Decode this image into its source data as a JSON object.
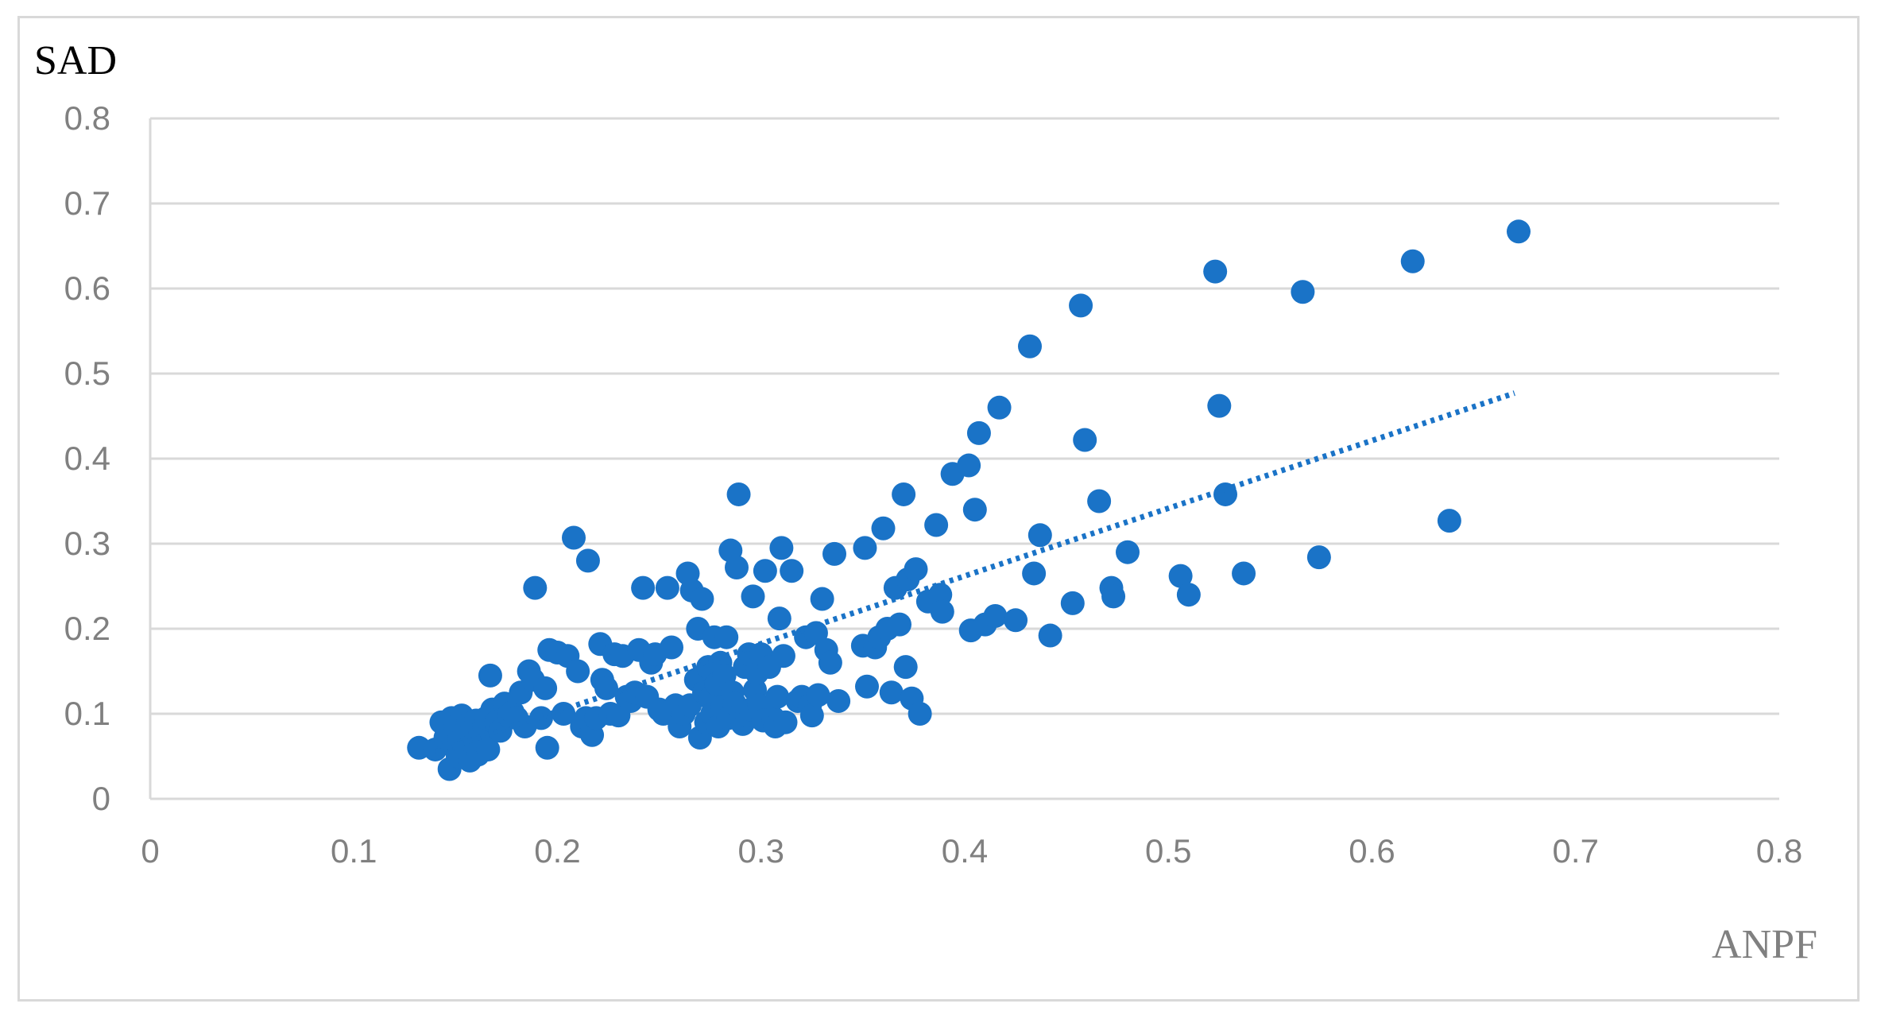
{
  "chart_data": {
    "type": "scatter",
    "title": "",
    "xlabel": "ANPF",
    "ylabel": "SAD",
    "xlim": [
      0,
      0.8
    ],
    "ylim": [
      0,
      0.8
    ],
    "x_ticks": [
      "0",
      "0.1",
      "0.2",
      "0.3",
      "0.4",
      "0.5",
      "0.6",
      "0.7",
      "0.8"
    ],
    "y_ticks": [
      "0",
      "0.1",
      "0.2",
      "0.3",
      "0.4",
      "0.5",
      "0.6",
      "0.7",
      "0.8"
    ],
    "grid": "horizontal",
    "legend": "none",
    "colors": {
      "marker": "#1a73c7",
      "trendline": "#1a73c7",
      "grid": "#d9d9d9",
      "tick": "#808080"
    },
    "trendline": {
      "style": "dotted",
      "from": [
        0.14,
        0.055
      ],
      "to": [
        0.67,
        0.477
      ]
    },
    "series": [
      {
        "points": [
          [
            0.132,
            0.06
          ],
          [
            0.14,
            0.058
          ],
          [
            0.143,
            0.09
          ],
          [
            0.145,
            0.072
          ],
          [
            0.146,
            0.08
          ],
          [
            0.147,
            0.035
          ],
          [
            0.148,
            0.095
          ],
          [
            0.149,
            0.062
          ],
          [
            0.15,
            0.085
          ],
          [
            0.151,
            0.05
          ],
          [
            0.152,
            0.07
          ],
          [
            0.153,
            0.098
          ],
          [
            0.154,
            0.075
          ],
          [
            0.155,
            0.058
          ],
          [
            0.156,
            0.088
          ],
          [
            0.157,
            0.045
          ],
          [
            0.158,
            0.082
          ],
          [
            0.159,
            0.065
          ],
          [
            0.16,
            0.092
          ],
          [
            0.161,
            0.052
          ],
          [
            0.162,
            0.078
          ],
          [
            0.163,
            0.068
          ],
          [
            0.164,
            0.085
          ],
          [
            0.165,
            0.095
          ],
          [
            0.166,
            0.058
          ],
          [
            0.167,
            0.145
          ],
          [
            0.168,
            0.105
          ],
          [
            0.17,
            0.09
          ],
          [
            0.172,
            0.08
          ],
          [
            0.174,
            0.112
          ],
          [
            0.176,
            0.098
          ],
          [
            0.178,
            0.102
          ],
          [
            0.18,
            0.095
          ],
          [
            0.182,
            0.125
          ],
          [
            0.184,
            0.085
          ],
          [
            0.186,
            0.15
          ],
          [
            0.188,
            0.14
          ],
          [
            0.189,
            0.248
          ],
          [
            0.192,
            0.095
          ],
          [
            0.194,
            0.13
          ],
          [
            0.195,
            0.06
          ],
          [
            0.196,
            0.175
          ],
          [
            0.2,
            0.172
          ],
          [
            0.203,
            0.1
          ],
          [
            0.205,
            0.168
          ],
          [
            0.208,
            0.307
          ],
          [
            0.21,
            0.15
          ],
          [
            0.212,
            0.085
          ],
          [
            0.214,
            0.095
          ],
          [
            0.215,
            0.28
          ],
          [
            0.217,
            0.075
          ],
          [
            0.219,
            0.095
          ],
          [
            0.221,
            0.182
          ],
          [
            0.222,
            0.14
          ],
          [
            0.224,
            0.13
          ],
          [
            0.226,
            0.1
          ],
          [
            0.228,
            0.17
          ],
          [
            0.23,
            0.098
          ],
          [
            0.232,
            0.168
          ],
          [
            0.234,
            0.12
          ],
          [
            0.236,
            0.115
          ],
          [
            0.238,
            0.125
          ],
          [
            0.24,
            0.175
          ],
          [
            0.242,
            0.248
          ],
          [
            0.244,
            0.12
          ],
          [
            0.246,
            0.16
          ],
          [
            0.248,
            0.17
          ],
          [
            0.25,
            0.105
          ],
          [
            0.252,
            0.1
          ],
          [
            0.254,
            0.248
          ],
          [
            0.256,
            0.178
          ],
          [
            0.258,
            0.11
          ],
          [
            0.26,
            0.085
          ],
          [
            0.262,
            0.1
          ],
          [
            0.264,
            0.265
          ],
          [
            0.265,
            0.11
          ],
          [
            0.266,
            0.245
          ],
          [
            0.268,
            0.14
          ],
          [
            0.269,
            0.2
          ],
          [
            0.27,
            0.072
          ],
          [
            0.271,
            0.235
          ],
          [
            0.272,
            0.125
          ],
          [
            0.273,
            0.09
          ],
          [
            0.274,
            0.155
          ],
          [
            0.275,
            0.118
          ],
          [
            0.276,
            0.1
          ],
          [
            0.277,
            0.19
          ],
          [
            0.278,
            0.135
          ],
          [
            0.279,
            0.085
          ],
          [
            0.28,
            0.16
          ],
          [
            0.281,
            0.108
          ],
          [
            0.282,
            0.145
          ],
          [
            0.283,
            0.19
          ],
          [
            0.284,
            0.095
          ],
          [
            0.285,
            0.292
          ],
          [
            0.286,
            0.125
          ],
          [
            0.287,
            0.112
          ],
          [
            0.288,
            0.272
          ],
          [
            0.289,
            0.358
          ],
          [
            0.29,
            0.1
          ],
          [
            0.291,
            0.088
          ],
          [
            0.292,
            0.155
          ],
          [
            0.293,
            0.098
          ],
          [
            0.294,
            0.17
          ],
          [
            0.295,
            0.105
          ],
          [
            0.296,
            0.238
          ],
          [
            0.297,
            0.128
          ],
          [
            0.298,
            0.148
          ],
          [
            0.299,
            0.11
          ],
          [
            0.3,
            0.17
          ],
          [
            0.301,
            0.092
          ],
          [
            0.302,
            0.268
          ],
          [
            0.304,
            0.155
          ],
          [
            0.306,
            0.095
          ],
          [
            0.307,
            0.085
          ],
          [
            0.308,
            0.12
          ],
          [
            0.309,
            0.212
          ],
          [
            0.31,
            0.295
          ],
          [
            0.311,
            0.168
          ],
          [
            0.312,
            0.09
          ],
          [
            0.315,
            0.268
          ],
          [
            0.318,
            0.115
          ],
          [
            0.32,
            0.12
          ],
          [
            0.322,
            0.19
          ],
          [
            0.324,
            0.11
          ],
          [
            0.325,
            0.098
          ],
          [
            0.327,
            0.195
          ],
          [
            0.328,
            0.122
          ],
          [
            0.33,
            0.235
          ],
          [
            0.332,
            0.175
          ],
          [
            0.334,
            0.16
          ],
          [
            0.336,
            0.288
          ],
          [
            0.338,
            0.115
          ],
          [
            0.35,
            0.18
          ],
          [
            0.351,
            0.295
          ],
          [
            0.352,
            0.132
          ],
          [
            0.356,
            0.178
          ],
          [
            0.358,
            0.19
          ],
          [
            0.36,
            0.318
          ],
          [
            0.362,
            0.2
          ],
          [
            0.364,
            0.125
          ],
          [
            0.366,
            0.248
          ],
          [
            0.368,
            0.205
          ],
          [
            0.37,
            0.358
          ],
          [
            0.371,
            0.155
          ],
          [
            0.372,
            0.258
          ],
          [
            0.374,
            0.118
          ],
          [
            0.376,
            0.27
          ],
          [
            0.378,
            0.1
          ],
          [
            0.382,
            0.232
          ],
          [
            0.386,
            0.322
          ],
          [
            0.388,
            0.24
          ],
          [
            0.389,
            0.22
          ],
          [
            0.394,
            0.382
          ],
          [
            0.402,
            0.392
          ],
          [
            0.403,
            0.198
          ],
          [
            0.405,
            0.34
          ],
          [
            0.407,
            0.43
          ],
          [
            0.41,
            0.205
          ],
          [
            0.415,
            0.215
          ],
          [
            0.417,
            0.46
          ],
          [
            0.425,
            0.21
          ],
          [
            0.432,
            0.532
          ],
          [
            0.434,
            0.265
          ],
          [
            0.437,
            0.31
          ],
          [
            0.442,
            0.192
          ],
          [
            0.453,
            0.23
          ],
          [
            0.457,
            0.58
          ],
          [
            0.459,
            0.422
          ],
          [
            0.466,
            0.35
          ],
          [
            0.472,
            0.248
          ],
          [
            0.473,
            0.238
          ],
          [
            0.48,
            0.29
          ],
          [
            0.506,
            0.262
          ],
          [
            0.51,
            0.24
          ],
          [
            0.523,
            0.62
          ],
          [
            0.525,
            0.462
          ],
          [
            0.528,
            0.358
          ],
          [
            0.537,
            0.265
          ],
          [
            0.566,
            0.596
          ],
          [
            0.574,
            0.284
          ],
          [
            0.62,
            0.632
          ],
          [
            0.638,
            0.327
          ],
          [
            0.672,
            0.667
          ]
        ]
      }
    ]
  }
}
